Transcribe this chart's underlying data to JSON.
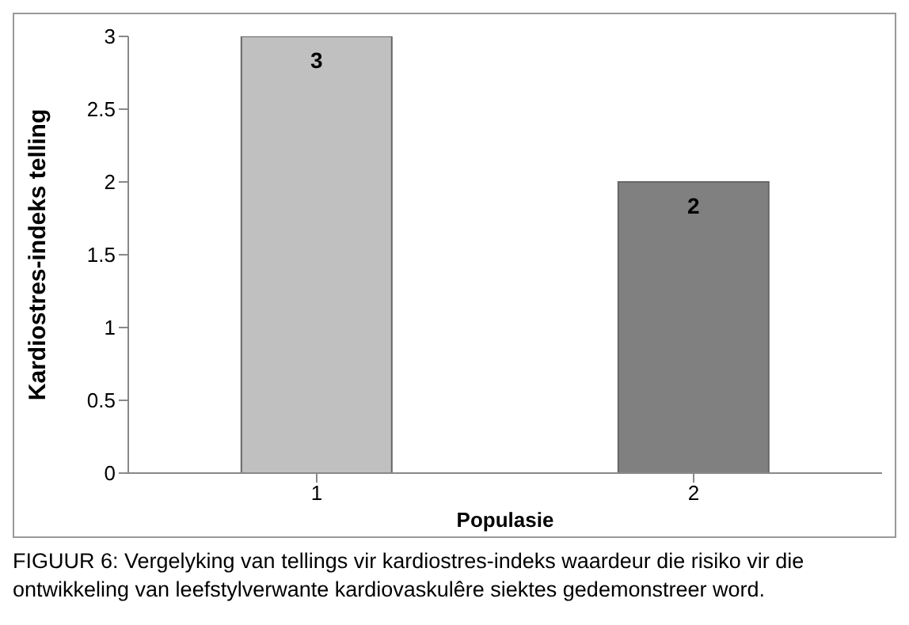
{
  "chart_data": {
    "type": "bar",
    "categories": [
      "1",
      "2"
    ],
    "values": [
      3,
      2
    ],
    "colors": [
      "#c0c0c0",
      "#808080"
    ],
    "ylim": [
      0,
      3
    ],
    "yticks": [
      0,
      0.5,
      1,
      1.5,
      2,
      2.5,
      3
    ],
    "xlabel": "Populasie",
    "ylabel": "Kardiostres-indeks telling",
    "data_labels": true,
    "grid": false,
    "legend": false,
    "annotations": [
      "FIGUUR 6: Vergelyking van tellings vir kardiostres-indeks waardeur die risiko vir die ontwikkeling van leefstylverwante kardiovaskulêre siektes gedemonstreer word."
    ]
  }
}
